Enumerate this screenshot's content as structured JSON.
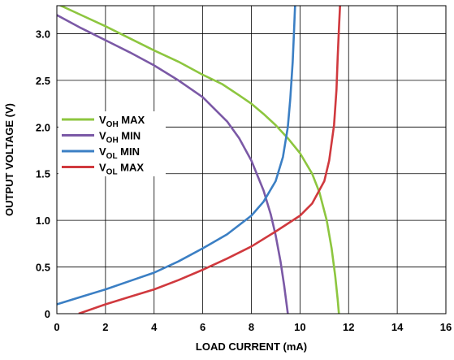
{
  "chart_data": {
    "type": "line",
    "xlabel": "LOAD CURRENT (mA)",
    "ylabel": "OUTPUT VOLTAGE (V)",
    "xlim": [
      0,
      16
    ],
    "ylim": [
      0,
      3.3
    ],
    "x_ticks": [
      "0",
      "2",
      "4",
      "6",
      "8",
      "10",
      "12",
      "14",
      "16"
    ],
    "y_ticks": [
      "0",
      "0.5",
      "1.0",
      "1.5",
      "2.0",
      "2.5",
      "3.0"
    ],
    "x_tick_values": [
      0,
      2,
      4,
      6,
      8,
      10,
      12,
      14,
      16
    ],
    "y_tick_values": [
      0,
      0.5,
      1.0,
      1.5,
      2.0,
      2.5,
      3.0
    ],
    "grid": true,
    "legend_position": "left-middle",
    "series": [
      {
        "name": "V_OH MAX",
        "label_main": "V",
        "label_sub": "OH",
        "label_suffix": " MAX",
        "color": "#8dc63f",
        "x": [
          0.0,
          1.0,
          2.0,
          3.0,
          4.0,
          5.0,
          6.0,
          6.8,
          7.5,
          8.0,
          8.5,
          9.0,
          9.5,
          10.0,
          10.5,
          10.8,
          11.1,
          11.3,
          11.45,
          11.55,
          11.6
        ],
        "y": [
          3.32,
          3.2,
          3.08,
          2.95,
          2.82,
          2.7,
          2.56,
          2.46,
          2.34,
          2.25,
          2.14,
          2.02,
          1.88,
          1.72,
          1.5,
          1.3,
          1.0,
          0.7,
          0.4,
          0.15,
          0.0
        ]
      },
      {
        "name": "V_OH MIN",
        "label_main": "V",
        "label_sub": "OH",
        "label_suffix": " MIN",
        "color": "#7b59a6",
        "x": [
          0.0,
          1.0,
          2.0,
          3.0,
          4.0,
          5.0,
          6.0,
          7.0,
          7.5,
          8.0,
          8.5,
          8.8,
          9.0,
          9.2,
          9.35,
          9.45,
          9.5
        ],
        "y": [
          3.2,
          3.06,
          2.93,
          2.8,
          2.66,
          2.5,
          2.32,
          2.06,
          1.88,
          1.64,
          1.32,
          1.06,
          0.84,
          0.56,
          0.3,
          0.1,
          0.0
        ]
      },
      {
        "name": "V_OL MIN",
        "label_main": "V",
        "label_sub": "OL",
        "label_suffix": " MIN",
        "color": "#3b7fc4",
        "x": [
          0.0,
          1.0,
          2.0,
          3.0,
          4.0,
          5.0,
          6.0,
          7.0,
          8.0,
          8.5,
          9.0,
          9.3,
          9.5,
          9.6,
          9.7,
          9.75,
          9.8
        ],
        "y": [
          0.1,
          0.18,
          0.26,
          0.35,
          0.44,
          0.56,
          0.7,
          0.85,
          1.05,
          1.2,
          1.42,
          1.68,
          2.0,
          2.3,
          2.7,
          3.0,
          3.32
        ]
      },
      {
        "name": "V_OL MAX",
        "label_main": "V",
        "label_sub": "OL",
        "label_suffix": " MAX",
        "color": "#d0393e",
        "x": [
          0.9,
          2.0,
          3.0,
          4.0,
          5.0,
          6.0,
          7.0,
          8.0,
          9.0,
          10.0,
          10.5,
          11.0,
          11.2,
          11.4,
          11.5,
          11.55,
          11.6,
          11.65
        ],
        "y": [
          0.0,
          0.1,
          0.18,
          0.26,
          0.36,
          0.47,
          0.59,
          0.72,
          0.88,
          1.05,
          1.18,
          1.42,
          1.64,
          2.02,
          2.4,
          2.75,
          3.05,
          3.32
        ]
      }
    ]
  }
}
